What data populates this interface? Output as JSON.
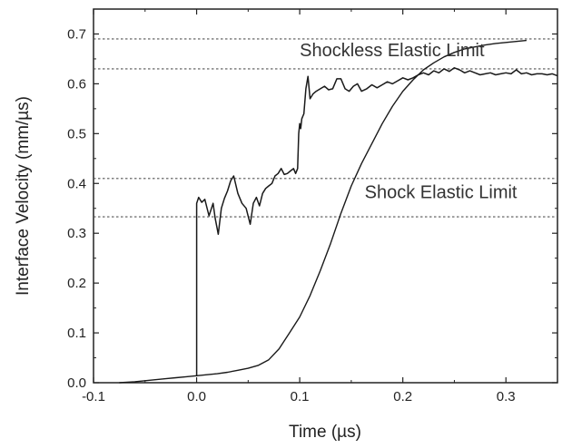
{
  "chart_data": {
    "type": "line",
    "title": "",
    "xlabel": "Time (µs)",
    "ylabel": "Interface Velocity (mm/µs)",
    "xlim": [
      -0.1,
      0.35
    ],
    "ylim": [
      0,
      0.75
    ],
    "x_ticks": [
      {
        "value": -0.1,
        "label": "-0.1"
      },
      {
        "value": 0.0,
        "label": "0.0"
      },
      {
        "value": 0.1,
        "label": "0.1"
      },
      {
        "value": 0.2,
        "label": "0.2"
      },
      {
        "value": 0.3,
        "label": "0.3"
      }
    ],
    "y_ticks": [
      {
        "value": 0.0,
        "label": "0.0"
      },
      {
        "value": 0.1,
        "label": "0.1"
      },
      {
        "value": 0.2,
        "label": "0.2"
      },
      {
        "value": 0.3,
        "label": "0.3"
      },
      {
        "value": 0.4,
        "label": "0.4"
      },
      {
        "value": 0.5,
        "label": "0.5"
      },
      {
        "value": 0.6,
        "label": "0.6"
      },
      {
        "value": 0.7,
        "label": "0.7"
      }
    ],
    "reference_lines": [
      0.69,
      0.63,
      0.41,
      0.333
    ],
    "annotations": [
      {
        "text": "Shockless Elastic Limit",
        "x": 0.1,
        "y": 0.655
      },
      {
        "text": "Shock Elastic Limit",
        "x": 0.163,
        "y": 0.37
      }
    ],
    "series": [
      {
        "style": "shock",
        "x": [
          0.0,
          0.0,
          0.002,
          0.005,
          0.008,
          0.012,
          0.016,
          0.018,
          0.021,
          0.024,
          0.027,
          0.03,
          0.033,
          0.036,
          0.04,
          0.044,
          0.048,
          0.052,
          0.055,
          0.058,
          0.061,
          0.064,
          0.067,
          0.07,
          0.073,
          0.076,
          0.079,
          0.082,
          0.085,
          0.088,
          0.091,
          0.094,
          0.096,
          0.098,
          0.099,
          0.1,
          0.101,
          0.102,
          0.104,
          0.106,
          0.108,
          0.11,
          0.113,
          0.116,
          0.12,
          0.124,
          0.128,
          0.132,
          0.136,
          0.14,
          0.144,
          0.148,
          0.152,
          0.156,
          0.16,
          0.165,
          0.17,
          0.175,
          0.18,
          0.185,
          0.19,
          0.195,
          0.2,
          0.205,
          0.21,
          0.215,
          0.22,
          0.225,
          0.23,
          0.235,
          0.24,
          0.245,
          0.25,
          0.255,
          0.26,
          0.265,
          0.27,
          0.275,
          0.28,
          0.285,
          0.29,
          0.295,
          0.3,
          0.305,
          0.31,
          0.315,
          0.32,
          0.325,
          0.33,
          0.335,
          0.34,
          0.345,
          0.35
        ],
        "y": [
          0.013,
          0.36,
          0.372,
          0.362,
          0.368,
          0.335,
          0.36,
          0.33,
          0.298,
          0.35,
          0.37,
          0.385,
          0.405,
          0.415,
          0.38,
          0.36,
          0.35,
          0.318,
          0.36,
          0.372,
          0.355,
          0.38,
          0.39,
          0.395,
          0.4,
          0.415,
          0.42,
          0.43,
          0.418,
          0.42,
          0.425,
          0.43,
          0.42,
          0.43,
          0.5,
          0.52,
          0.51,
          0.53,
          0.54,
          0.59,
          0.615,
          0.57,
          0.58,
          0.585,
          0.59,
          0.595,
          0.588,
          0.59,
          0.61,
          0.61,
          0.59,
          0.585,
          0.595,
          0.6,
          0.585,
          0.59,
          0.598,
          0.592,
          0.598,
          0.604,
          0.6,
          0.606,
          0.612,
          0.608,
          0.612,
          0.618,
          0.622,
          0.618,
          0.626,
          0.622,
          0.63,
          0.625,
          0.632,
          0.628,
          0.622,
          0.626,
          0.622,
          0.618,
          0.62,
          0.622,
          0.618,
          0.62,
          0.622,
          0.62,
          0.628,
          0.62,
          0.622,
          0.618,
          0.62,
          0.62,
          0.618,
          0.62,
          0.616
        ]
      },
      {
        "style": "ramp",
        "x": [
          -0.075,
          -0.06,
          -0.05,
          -0.04,
          -0.03,
          -0.02,
          -0.01,
          0.0,
          0.01,
          0.02,
          0.03,
          0.04,
          0.05,
          0.06,
          0.07,
          0.08,
          0.09,
          0.1,
          0.11,
          0.12,
          0.13,
          0.14,
          0.15,
          0.16,
          0.17,
          0.18,
          0.19,
          0.2,
          0.21,
          0.22,
          0.23,
          0.24,
          0.25,
          0.26,
          0.27,
          0.28,
          0.29,
          0.3,
          0.31,
          0.32
        ],
        "y": [
          0.0,
          0.002,
          0.004,
          0.006,
          0.008,
          0.01,
          0.012,
          0.014,
          0.016,
          0.018,
          0.021,
          0.025,
          0.029,
          0.035,
          0.046,
          0.068,
          0.1,
          0.132,
          0.175,
          0.225,
          0.28,
          0.34,
          0.395,
          0.44,
          0.48,
          0.52,
          0.555,
          0.585,
          0.608,
          0.628,
          0.642,
          0.654,
          0.663,
          0.67,
          0.674,
          0.678,
          0.681,
          0.683,
          0.685,
          0.687
        ]
      }
    ]
  }
}
